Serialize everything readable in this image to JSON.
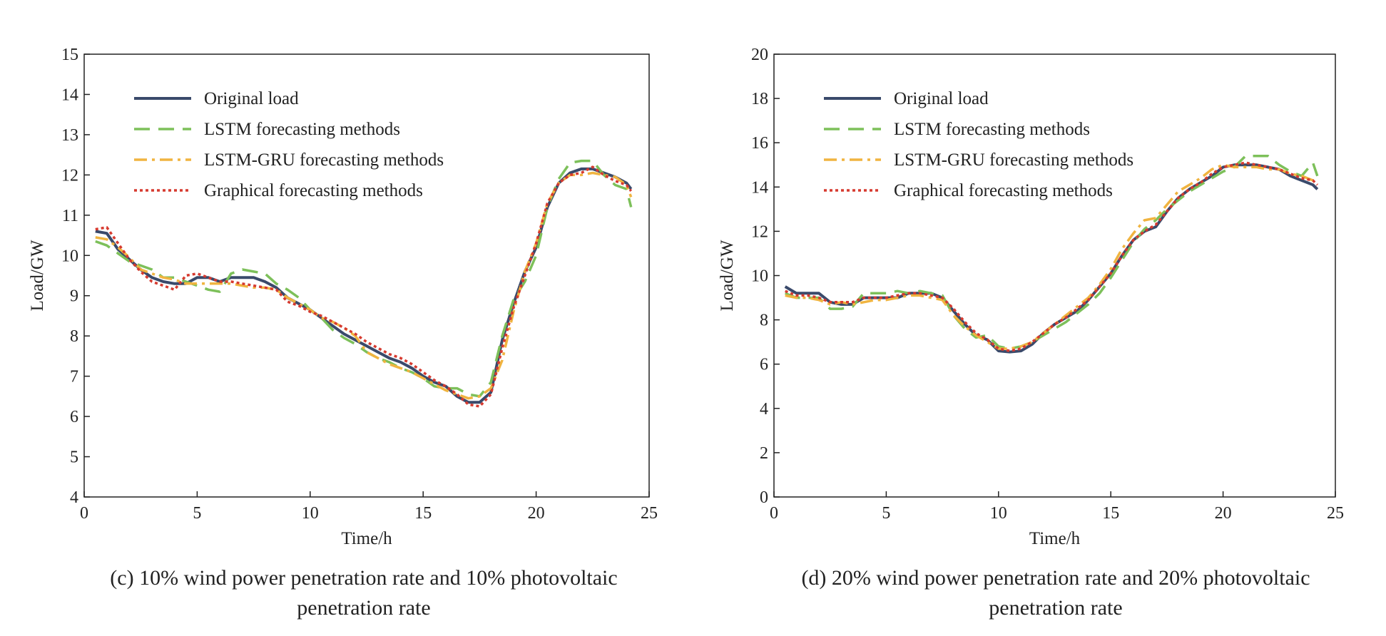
{
  "chart_data": [
    {
      "type": "line",
      "panel": "c",
      "caption_line1": "(c) 10% wind power penetration rate and 10% photovoltaic",
      "caption_line2": "penetration rate",
      "xlabel": "Time/h",
      "ylabel": "Load/GW",
      "xlim": [
        0,
        25
      ],
      "ylim": [
        4,
        15
      ],
      "xticks": [
        0,
        5,
        10,
        15,
        20,
        25
      ],
      "yticks": [
        4,
        5,
        6,
        7,
        8,
        9,
        10,
        11,
        12,
        13,
        14,
        15
      ],
      "grid": false,
      "legend_position": "top-left",
      "series": [
        {
          "name": "Original load",
          "color": "#3a4a6b",
          "style": "solid",
          "x": [
            0.5,
            1,
            1.5,
            2,
            2.5,
            3,
            3.5,
            4,
            4.5,
            5,
            5.5,
            6,
            6.5,
            7,
            7.5,
            8,
            8.5,
            9,
            9.5,
            10,
            10.5,
            11,
            11.5,
            12,
            12.5,
            13,
            13.5,
            14,
            14.5,
            15,
            15.5,
            16,
            16.5,
            17,
            17.5,
            18,
            18.5,
            19,
            19.5,
            20,
            20.5,
            21,
            21.5,
            22,
            22.5,
            23,
            23.5,
            24,
            24.2
          ],
          "y": [
            10.6,
            10.55,
            10.15,
            9.9,
            9.65,
            9.45,
            9.35,
            9.3,
            9.3,
            9.45,
            9.45,
            9.35,
            9.45,
            9.45,
            9.45,
            9.35,
            9.2,
            8.95,
            8.8,
            8.65,
            8.45,
            8.25,
            8.05,
            7.9,
            7.75,
            7.6,
            7.45,
            7.35,
            7.2,
            7.0,
            6.85,
            6.75,
            6.5,
            6.35,
            6.35,
            6.6,
            7.9,
            8.8,
            9.6,
            10.2,
            11.2,
            11.8,
            12.05,
            12.15,
            12.15,
            12.05,
            11.95,
            11.8,
            11.65
          ]
        },
        {
          "name": "LSTM forecasting methods",
          "color": "#7dc05a",
          "style": "dashed",
          "x": [
            0.5,
            1,
            1.5,
            2,
            2.5,
            3,
            3.5,
            4,
            4.5,
            5,
            5.5,
            6,
            6.5,
            7,
            7.5,
            8,
            8.5,
            9,
            9.5,
            10,
            10.5,
            11,
            11.5,
            12,
            12.5,
            13,
            13.5,
            14,
            14.5,
            15,
            15.5,
            16,
            16.5,
            17,
            17.5,
            18,
            18.5,
            19,
            19.5,
            20,
            20.5,
            21,
            21.5,
            22,
            22.5,
            23,
            23.5,
            24,
            24.2
          ],
          "y": [
            10.35,
            10.25,
            10.05,
            9.85,
            9.75,
            9.65,
            9.45,
            9.45,
            9.35,
            9.25,
            9.15,
            9.1,
            9.55,
            9.65,
            9.6,
            9.55,
            9.3,
            9.15,
            8.95,
            8.65,
            8.45,
            8.15,
            7.95,
            7.8,
            7.6,
            7.45,
            7.35,
            7.2,
            7.1,
            6.95,
            6.75,
            6.7,
            6.7,
            6.55,
            6.5,
            6.85,
            8.0,
            8.9,
            9.35,
            10.0,
            11.2,
            11.9,
            12.3,
            12.35,
            12.35,
            12.0,
            11.75,
            11.65,
            11.2
          ]
        },
        {
          "name": "LSTM-GRU forecasting methods",
          "color": "#f0b440",
          "style": "dashdot",
          "x": [
            0.5,
            1,
            1.5,
            2,
            2.5,
            3,
            3.5,
            4,
            4.5,
            5,
            5.5,
            6,
            6.5,
            7,
            7.5,
            8,
            8.5,
            9,
            9.5,
            10,
            10.5,
            11,
            11.5,
            12,
            12.5,
            13,
            13.5,
            14,
            14.5,
            15,
            15.5,
            16,
            16.5,
            17,
            17.5,
            18,
            18.5,
            19,
            19.5,
            20,
            20.5,
            21,
            21.5,
            22,
            22.5,
            23,
            23.5,
            24,
            24.2
          ],
          "y": [
            10.45,
            10.4,
            10.2,
            9.95,
            9.65,
            9.55,
            9.45,
            9.4,
            9.3,
            9.3,
            9.3,
            9.3,
            9.3,
            9.25,
            9.2,
            9.2,
            9.15,
            8.95,
            8.8,
            8.65,
            8.45,
            8.35,
            8.2,
            8.0,
            7.6,
            7.45,
            7.3,
            7.2,
            7.1,
            6.95,
            6.8,
            6.65,
            6.55,
            6.45,
            6.5,
            6.7,
            7.4,
            8.6,
            9.6,
            10.3,
            11.3,
            11.8,
            12.0,
            12.0,
            12.05,
            12.0,
            11.95,
            11.75,
            11.45
          ]
        },
        {
          "name": "Graphical forecasting methods",
          "color": "#d63a2f",
          "style": "dotted",
          "x": [
            0.5,
            1,
            1.5,
            2,
            2.5,
            3,
            3.5,
            4,
            4.5,
            5,
            5.5,
            6,
            6.5,
            7,
            7.5,
            8,
            8.5,
            9,
            9.5,
            10,
            10.5,
            11,
            11.5,
            12,
            12.5,
            13,
            13.5,
            14,
            14.5,
            15,
            15.5,
            16,
            16.5,
            17,
            17.5,
            18,
            18.5,
            19,
            19.5,
            20,
            20.5,
            21,
            21.5,
            22,
            22.5,
            23,
            23.5,
            24,
            24.2
          ],
          "y": [
            10.65,
            10.7,
            10.3,
            9.9,
            9.6,
            9.35,
            9.25,
            9.15,
            9.5,
            9.55,
            9.45,
            9.35,
            9.35,
            9.3,
            9.25,
            9.2,
            9.15,
            8.85,
            8.75,
            8.6,
            8.5,
            8.35,
            8.2,
            8.05,
            7.85,
            7.7,
            7.55,
            7.45,
            7.3,
            7.1,
            6.9,
            6.75,
            6.55,
            6.3,
            6.25,
            6.55,
            7.7,
            8.7,
            9.5,
            10.3,
            11.3,
            11.8,
            12.0,
            12.05,
            12.2,
            12.0,
            11.85,
            11.75,
            11.6
          ]
        }
      ]
    },
    {
      "type": "line",
      "panel": "d",
      "caption_line1": "(d) 20% wind power penetration rate and 20% photovoltaic",
      "caption_line2": "penetration rate",
      "xlabel": "Time/h",
      "ylabel": "Load/GW",
      "xlim": [
        0,
        25
      ],
      "ylim": [
        0,
        20
      ],
      "xticks": [
        0,
        5,
        10,
        15,
        20,
        25
      ],
      "yticks": [
        0,
        2,
        4,
        6,
        8,
        10,
        12,
        14,
        16,
        18,
        20
      ],
      "grid": false,
      "legend_position": "top-left",
      "series": [
        {
          "name": "Original load",
          "color": "#3a4a6b",
          "style": "solid",
          "x": [
            0.5,
            1,
            1.5,
            2,
            2.5,
            3,
            3.5,
            4,
            4.5,
            5,
            5.5,
            6,
            6.5,
            7,
            7.5,
            8,
            8.5,
            9,
            9.5,
            10,
            10.5,
            11,
            11.5,
            12,
            12.5,
            13,
            13.5,
            14,
            14.5,
            15,
            15.5,
            16,
            16.5,
            17,
            17.5,
            18,
            18.5,
            19,
            19.5,
            20,
            20.5,
            21,
            21.5,
            22,
            22.5,
            23,
            23.5,
            24,
            24.2
          ],
          "y": [
            9.5,
            9.2,
            9.2,
            9.2,
            8.8,
            8.7,
            8.7,
            9.0,
            9.0,
            9.0,
            9.0,
            9.2,
            9.2,
            9.2,
            9.0,
            8.4,
            7.8,
            7.3,
            7.1,
            6.6,
            6.55,
            6.6,
            6.9,
            7.4,
            7.8,
            8.1,
            8.4,
            8.9,
            9.5,
            10.1,
            10.9,
            11.6,
            12.0,
            12.2,
            12.9,
            13.5,
            13.9,
            14.2,
            14.5,
            14.9,
            15.0,
            15.0,
            15.0,
            14.9,
            14.8,
            14.5,
            14.3,
            14.1,
            13.9
          ]
        },
        {
          "name": "LSTM  forecasting methods",
          "color": "#7dc05a",
          "style": "dashed",
          "x": [
            0.5,
            1,
            1.5,
            2,
            2.5,
            3,
            3.5,
            4,
            4.5,
            5,
            5.5,
            6,
            6.5,
            7,
            7.5,
            8,
            8.5,
            9,
            9.5,
            10,
            10.5,
            11,
            11.5,
            12,
            12.5,
            13,
            13.5,
            14,
            14.5,
            15,
            15.5,
            16,
            16.5,
            17,
            17.5,
            18,
            18.5,
            19,
            19.5,
            20,
            20.5,
            21,
            21.5,
            22,
            22.5,
            23,
            23.5,
            24,
            24.2
          ],
          "y": [
            9.2,
            9.0,
            9.0,
            9.0,
            8.5,
            8.5,
            8.6,
            9.2,
            9.2,
            9.2,
            9.3,
            9.2,
            9.3,
            9.2,
            9.1,
            8.2,
            7.6,
            7.2,
            7.3,
            6.8,
            6.7,
            6.8,
            7.0,
            7.3,
            7.6,
            7.9,
            8.3,
            8.7,
            9.2,
            9.9,
            10.7,
            11.5,
            12.1,
            12.5,
            13.0,
            13.4,
            13.8,
            14.1,
            14.4,
            14.7,
            14.9,
            15.4,
            15.4,
            15.4,
            15.0,
            14.7,
            14.5,
            15.1,
            14.5
          ]
        },
        {
          "name": "LSTM-GRU forecasting methods",
          "color": "#f0b440",
          "style": "dashdot",
          "x": [
            0.5,
            1,
            1.5,
            2,
            2.5,
            3,
            3.5,
            4,
            4.5,
            5,
            5.5,
            6,
            6.5,
            7,
            7.5,
            8,
            8.5,
            9,
            9.5,
            10,
            10.5,
            11,
            11.5,
            12,
            12.5,
            13,
            13.5,
            14,
            14.5,
            15,
            15.5,
            16,
            16.5,
            17,
            17.5,
            18,
            18.5,
            19,
            19.5,
            20,
            20.5,
            21,
            21.5,
            22,
            22.5,
            23,
            23.5,
            24,
            24.2
          ],
          "y": [
            9.1,
            9.0,
            9.0,
            8.9,
            8.7,
            8.8,
            8.7,
            8.8,
            8.9,
            8.9,
            9.0,
            9.1,
            9.1,
            9.0,
            8.9,
            8.2,
            7.7,
            7.3,
            7.0,
            6.7,
            6.7,
            6.8,
            7.0,
            7.4,
            7.8,
            8.2,
            8.6,
            9.0,
            9.6,
            10.3,
            11.2,
            11.9,
            12.5,
            12.6,
            13.2,
            13.8,
            14.1,
            14.4,
            14.8,
            15.0,
            14.9,
            14.9,
            14.9,
            14.8,
            14.8,
            14.6,
            14.5,
            14.3,
            14.2
          ]
        },
        {
          "name": "Graphical forecasting methods",
          "color": "#d63a2f",
          "style": "dotted",
          "x": [
            0.5,
            1,
            1.5,
            2,
            2.5,
            3,
            3.5,
            4,
            4.5,
            5,
            5.5,
            6,
            6.5,
            7,
            7.5,
            8,
            8.5,
            9,
            9.5,
            10,
            10.5,
            11,
            11.5,
            12,
            12.5,
            13,
            13.5,
            14,
            14.5,
            15,
            15.5,
            16,
            16.5,
            17,
            17.5,
            18,
            18.5,
            19,
            19.5,
            20,
            20.5,
            21,
            21.5,
            22,
            22.5,
            23,
            23.5,
            24,
            24.2
          ],
          "y": [
            9.3,
            9.1,
            9.1,
            9.0,
            8.8,
            8.8,
            8.8,
            9.0,
            9.0,
            9.0,
            9.1,
            9.2,
            9.2,
            9.1,
            9.0,
            8.5,
            7.9,
            7.4,
            7.1,
            6.7,
            6.6,
            6.7,
            7.0,
            7.4,
            7.8,
            8.1,
            8.5,
            8.9,
            9.5,
            10.1,
            10.9,
            11.6,
            12.0,
            12.3,
            12.9,
            13.5,
            13.9,
            14.2,
            14.6,
            14.9,
            15.0,
            15.1,
            15.0,
            14.9,
            14.8,
            14.6,
            14.4,
            14.3,
            14.1
          ]
        }
      ]
    }
  ]
}
